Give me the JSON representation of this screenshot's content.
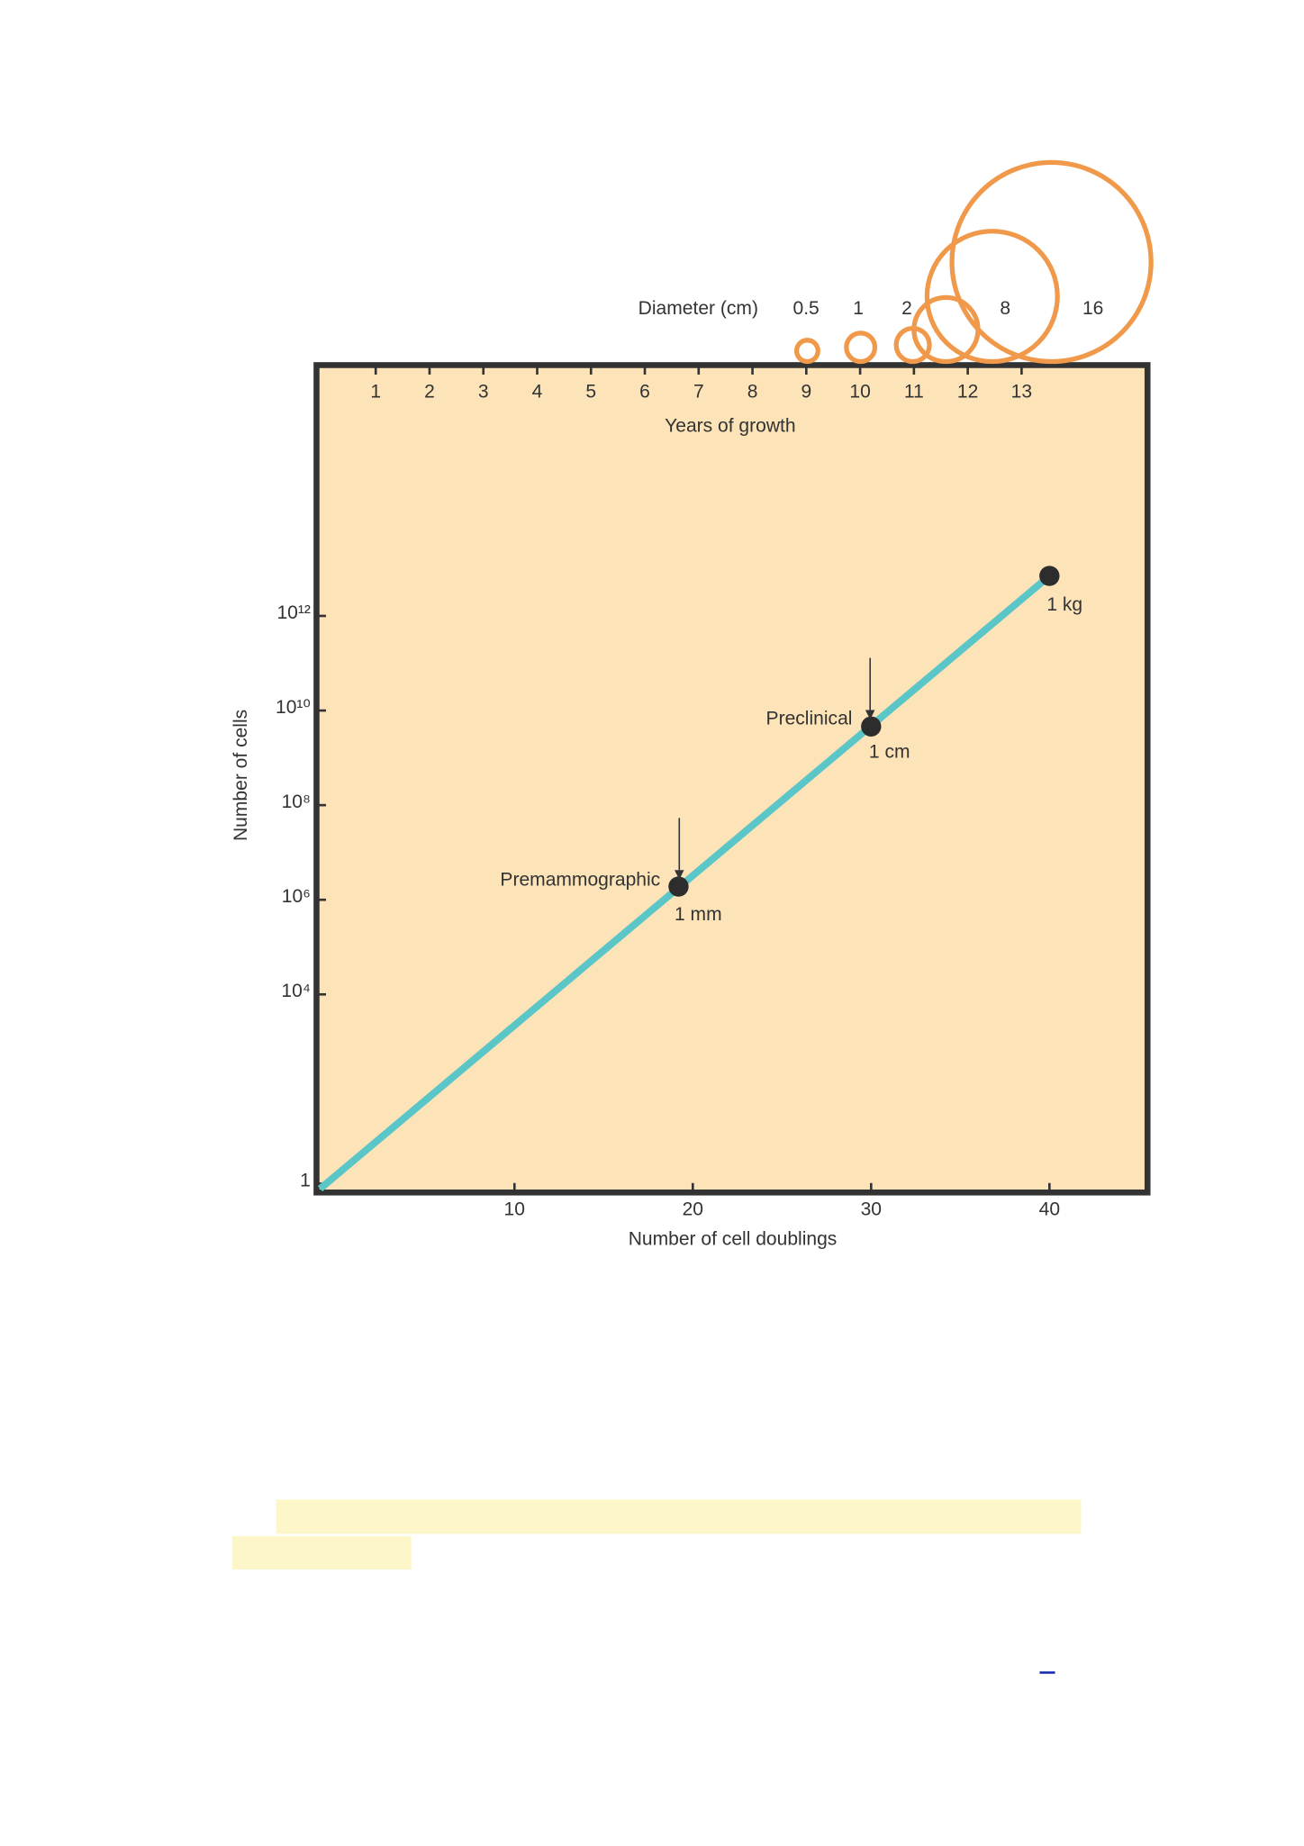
{
  "chart_data": {
    "type": "line",
    "xlabel": "Number of cell doublings",
    "ylabel": "Number of cells",
    "x2label": "Years of growth",
    "xlim": [
      -1.1,
      45.5
    ],
    "xticks": [
      10,
      20,
      30,
      40
    ],
    "x2lim": [
      -0.1,
      15.34
    ],
    "x2ticks": [
      1,
      2,
      3,
      4,
      5,
      6,
      7,
      8,
      9,
      10,
      11,
      12,
      13
    ],
    "ylog": true,
    "ylim": [
      0.65,
      2e+17
    ],
    "yticks": [
      1,
      {
        "value": 10000,
        "label": "10⁴"
      },
      {
        "value": 1000000,
        "label": "10⁶"
      },
      {
        "value": 100000000,
        "label": "10⁸"
      },
      {
        "value": 10000000000,
        "label": "10¹⁰"
      },
      {
        "value": 1000000000000,
        "label": "10¹²"
      }
    ],
    "background": "#fce3b8",
    "series": [
      {
        "color": "#5bc6c8",
        "x": [
          -0.9,
          40
        ],
        "values": [
          0.78,
          7000000000000
        ]
      },
      {
        "color": "#2d2d2d",
        "x": [
          19.2,
          30,
          40
        ],
        "values": [
          1900000,
          4600000000,
          7000000000000
        ]
      }
    ],
    "annotations": [
      "Premammographic",
      "1 mm",
      "Preclinical",
      "1 cm",
      "1 kg"
    ],
    "diameter": {
      "label": "Diameter (cm)",
      "color": "#f0994a",
      "values": [
        0.5,
        1,
        2,
        4,
        8,
        16
      ]
    }
  }
}
